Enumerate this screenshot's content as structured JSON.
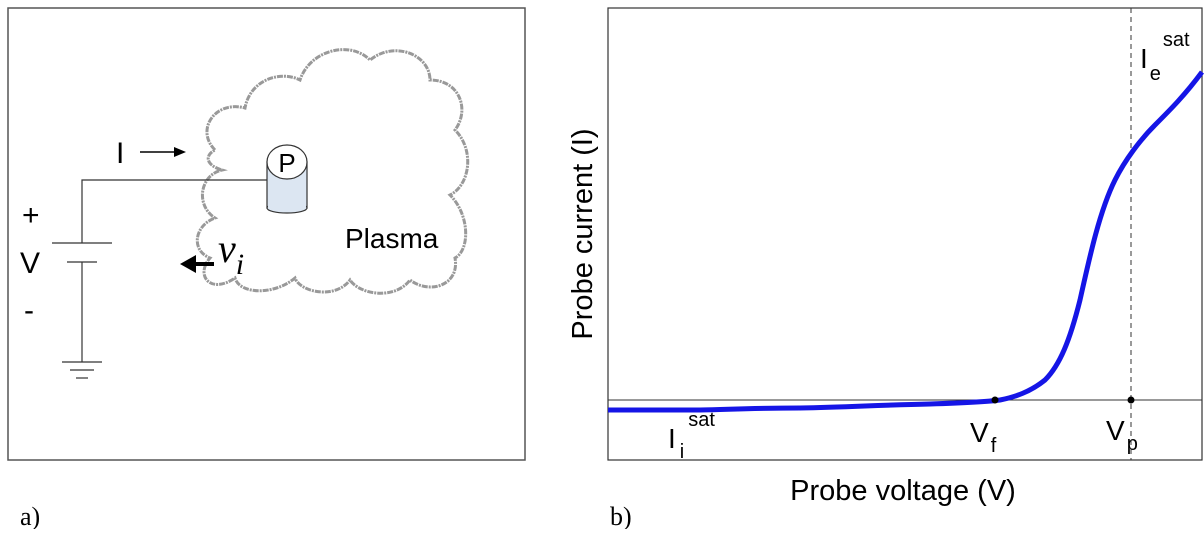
{
  "panel_a": {
    "caption": "a)",
    "current_label": "I",
    "plus": "+",
    "voltage_label": "V",
    "minus": "-",
    "probe_label": "P",
    "plasma_label": "Plasma",
    "ion_velocity": {
      "main": "v",
      "sub": "i"
    }
  },
  "panel_b": {
    "caption": "b)",
    "x_label": "Probe voltage (V)",
    "y_label": "Probe current (I)",
    "ion_saturation": {
      "main": "I",
      "sub": "i",
      "sup": "sat"
    },
    "floating_potential": {
      "main": "V",
      "sub": "f"
    },
    "plasma_potential": {
      "main": "V",
      "sub": "p"
    },
    "electron_saturation": {
      "main": "I",
      "sub": "e",
      "sup": "sat"
    }
  }
}
